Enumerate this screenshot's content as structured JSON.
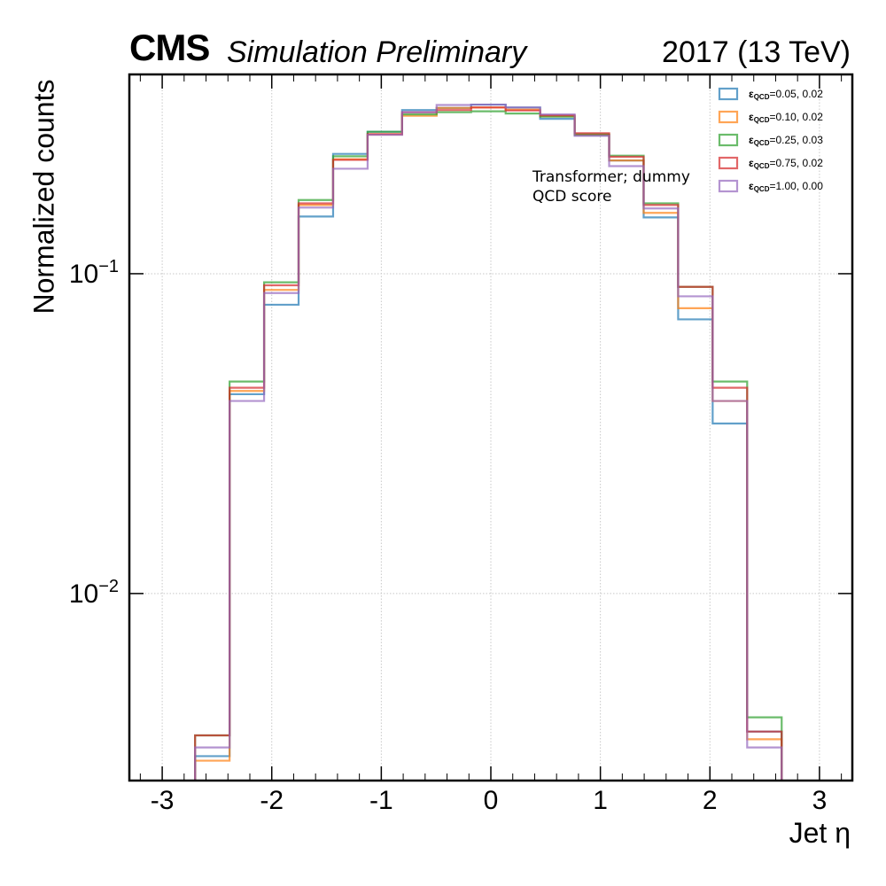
{
  "header": {
    "experiment": "CMS",
    "status": "Simulation Preliminary",
    "lumi": "2017 (13 TeV)"
  },
  "chart_data": {
    "type": "step",
    "xlabel": "Jet η",
    "ylabel": "Normalized counts",
    "yscale": "log",
    "xlim": [
      -3.3,
      3.3
    ],
    "ylim": [
      0.0026,
      0.42
    ],
    "grid": true,
    "x_ticks": [
      -3,
      -2,
      -1,
      0,
      1,
      2,
      3
    ],
    "x_tick_labels": [
      "-3",
      "-2",
      "-1",
      "0",
      "1",
      "2",
      "3"
    ],
    "y_major_ticks": [
      0.01,
      0.1
    ],
    "y_tick_labels": [
      "10^-2",
      "10^-1"
    ],
    "annotation": [
      "Transformer; dummy",
      "QCD score"
    ],
    "legend_position": "top-right",
    "bin_edges": [
      -2.7,
      -2.385,
      -2.07,
      -1.755,
      -1.44,
      -1.125,
      -0.81,
      -0.495,
      -0.18,
      0.135,
      0.45,
      0.765,
      1.08,
      1.395,
      1.71,
      2.025,
      2.34,
      2.655
    ],
    "series": [
      {
        "name": "ε_QCD = 0.05, 0.02",
        "color": "#1f77b4",
        "values": [
          0.0031,
          0.042,
          0.08,
          0.151,
          0.237,
          0.278,
          0.325,
          0.33,
          0.338,
          0.331,
          0.305,
          0.271,
          0.226,
          0.15,
          0.072,
          0.034,
          0.0037
        ]
      },
      {
        "name": "ε_QCD = 0.10, 0.02",
        "color": "#ff7f0e",
        "values": [
          0.003,
          0.043,
          0.089,
          0.164,
          0.228,
          0.273,
          0.312,
          0.33,
          0.331,
          0.326,
          0.311,
          0.272,
          0.226,
          0.155,
          0.078,
          0.04,
          0.0035
        ]
      },
      {
        "name": "ε_QCD = 0.25, 0.03",
        "color": "#2ca02c",
        "values": [
          0.0036,
          0.046,
          0.094,
          0.17,
          0.233,
          0.278,
          0.315,
          0.32,
          0.322,
          0.317,
          0.31,
          0.273,
          0.234,
          0.166,
          0.091,
          0.046,
          0.0041
        ]
      },
      {
        "name": "ε_QCD = 0.75, 0.02",
        "color": "#d62728",
        "values": [
          0.0036,
          0.044,
          0.092,
          0.166,
          0.227,
          0.273,
          0.32,
          0.325,
          0.331,
          0.324,
          0.313,
          0.275,
          0.232,
          0.164,
          0.091,
          0.044,
          0.0037
        ]
      },
      {
        "name": "ε_QCD = 1.00, 0.00",
        "color": "#9467bd",
        "values": [
          0.0033,
          0.04,
          0.087,
          0.161,
          0.213,
          0.272,
          0.32,
          0.337,
          0.338,
          0.331,
          0.315,
          0.27,
          0.217,
          0.16,
          0.085,
          0.04,
          0.0033
        ]
      }
    ]
  }
}
